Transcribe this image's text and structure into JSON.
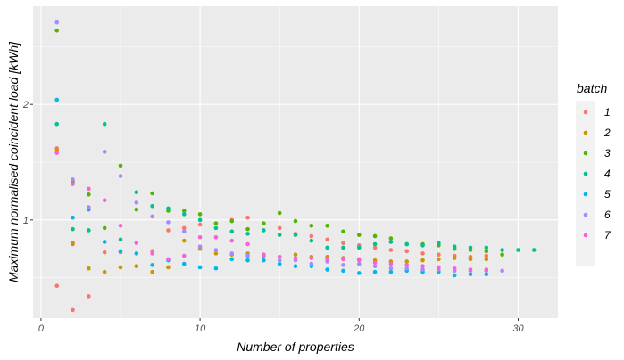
{
  "chart_data": {
    "type": "scatter",
    "title": "",
    "xlabel": "Number of properties",
    "ylabel": "Maximum normalised coincident load [kWh]",
    "xlim": [
      -0.5,
      32.5
    ],
    "ylim": [
      0.15,
      2.85
    ],
    "xticks": [
      0,
      10,
      20,
      30
    ],
    "xtick_labels": [
      "0",
      "10",
      "20",
      "30"
    ],
    "yticks": [
      1,
      2
    ],
    "ytick_labels": [
      "1",
      "2"
    ],
    "grid": true,
    "legend": {
      "title": "batch",
      "position": "right"
    },
    "series": [
      {
        "name": "1",
        "color": "#F8766D",
        "x": [
          1,
          1,
          2,
          2,
          3,
          4,
          5,
          6,
          7,
          8,
          9,
          10,
          11,
          12,
          13,
          14,
          15,
          16,
          17,
          18,
          19,
          20,
          21,
          22,
          23,
          24,
          25,
          26,
          27,
          28
        ],
        "y": [
          0.43,
          1.62,
          0.22,
          0.79,
          0.34,
          0.72,
          0.72,
          0.6,
          0.73,
          0.91,
          0.93,
          0.96,
          0.97,
          1.0,
          1.02,
          0.97,
          0.93,
          0.88,
          0.86,
          0.83,
          0.8,
          0.78,
          0.76,
          0.74,
          0.73,
          0.71,
          0.7,
          0.69,
          0.68,
          0.69
        ]
      },
      {
        "name": "2",
        "color": "#C49A00",
        "x": [
          1,
          2,
          3,
          4,
          5,
          6,
          7,
          8,
          9,
          10,
          11,
          12,
          13,
          14,
          15,
          16,
          17,
          18,
          19,
          20,
          21,
          22,
          23,
          24,
          25,
          26,
          27,
          28
        ],
        "y": [
          1.6,
          0.8,
          0.58,
          0.55,
          0.59,
          0.6,
          0.55,
          0.59,
          0.82,
          0.75,
          0.71,
          0.7,
          0.71,
          0.69,
          0.68,
          0.7,
          0.68,
          0.68,
          0.67,
          0.66,
          0.65,
          0.64,
          0.64,
          0.65,
          0.66,
          0.67,
          0.66,
          0.66
        ]
      },
      {
        "name": "3",
        "color": "#53B400",
        "x": [
          1,
          2,
          3,
          4,
          5,
          6,
          7,
          8,
          9,
          10,
          11,
          12,
          13,
          14,
          15,
          16,
          17,
          18,
          19,
          20,
          21,
          22,
          23,
          24,
          25,
          26,
          27,
          28,
          29
        ],
        "y": [
          2.64,
          1.33,
          1.22,
          0.93,
          1.47,
          1.09,
          1.23,
          1.08,
          1.08,
          1.05,
          0.97,
          0.99,
          0.92,
          0.97,
          1.06,
          0.99,
          0.95,
          0.95,
          0.9,
          0.87,
          0.86,
          0.84,
          0.79,
          0.79,
          0.78,
          0.75,
          0.74,
          0.73,
          0.7
        ]
      },
      {
        "name": "4",
        "color": "#00C094",
        "x": [
          1,
          2,
          3,
          4,
          5,
          6,
          7,
          8,
          9,
          10,
          11,
          12,
          13,
          14,
          15,
          16,
          17,
          18,
          19,
          20,
          21,
          22,
          23,
          24,
          25,
          26,
          27,
          28,
          29,
          30,
          31
        ],
        "y": [
          1.83,
          0.92,
          0.91,
          1.83,
          0.83,
          1.24,
          1.12,
          1.1,
          1.05,
          1.0,
          0.93,
          0.9,
          0.88,
          0.91,
          0.87,
          0.87,
          0.82,
          0.76,
          0.76,
          0.76,
          0.79,
          0.81,
          0.79,
          0.78,
          0.8,
          0.77,
          0.76,
          0.76,
          0.74,
          0.74,
          0.74
        ]
      },
      {
        "name": "5",
        "color": "#00B6EB",
        "x": [
          1,
          2,
          3,
          4,
          5,
          6,
          7,
          8,
          9,
          10,
          11,
          12,
          13,
          14,
          15,
          16,
          17,
          18,
          19,
          20,
          21,
          22,
          23,
          24,
          25,
          26,
          27,
          28
        ],
        "y": [
          2.04,
          1.02,
          1.09,
          0.81,
          0.73,
          0.71,
          0.61,
          0.65,
          0.62,
          0.59,
          0.58,
          0.66,
          0.65,
          0.65,
          0.62,
          0.6,
          0.6,
          0.57,
          0.56,
          0.54,
          0.55,
          0.55,
          0.56,
          0.55,
          0.55,
          0.52,
          0.53,
          0.53
        ]
      },
      {
        "name": "6",
        "color": "#A58AFF",
        "x": [
          1,
          2,
          3,
          4,
          5,
          6,
          7,
          8,
          9,
          10,
          11,
          12,
          13,
          14,
          15,
          16,
          17,
          18,
          19,
          20,
          21,
          22,
          23,
          24,
          25,
          26,
          27,
          28,
          29
        ],
        "y": [
          2.71,
          1.35,
          1.11,
          1.59,
          1.38,
          1.15,
          1.03,
          0.98,
          0.9,
          0.77,
          0.74,
          0.71,
          0.69,
          0.7,
          0.65,
          0.65,
          0.62,
          0.64,
          0.61,
          0.62,
          0.6,
          0.58,
          0.58,
          0.57,
          0.57,
          0.56,
          0.56,
          0.56,
          0.56
        ]
      },
      {
        "name": "7",
        "color": "#FB61D7",
        "x": [
          1,
          2,
          3,
          4,
          5,
          6,
          7,
          8,
          9,
          10,
          11,
          12,
          13,
          14,
          15,
          16,
          17,
          18,
          19,
          20,
          21,
          22,
          23,
          24,
          25,
          26,
          27,
          28
        ],
        "y": [
          1.58,
          1.31,
          1.27,
          1.17,
          0.95,
          0.8,
          0.71,
          0.66,
          0.69,
          0.85,
          0.85,
          0.82,
          0.79,
          0.7,
          0.68,
          0.67,
          0.67,
          0.66,
          0.66,
          0.65,
          0.63,
          0.62,
          0.61,
          0.6,
          0.59,
          0.58,
          0.57,
          0.57
        ]
      }
    ]
  }
}
